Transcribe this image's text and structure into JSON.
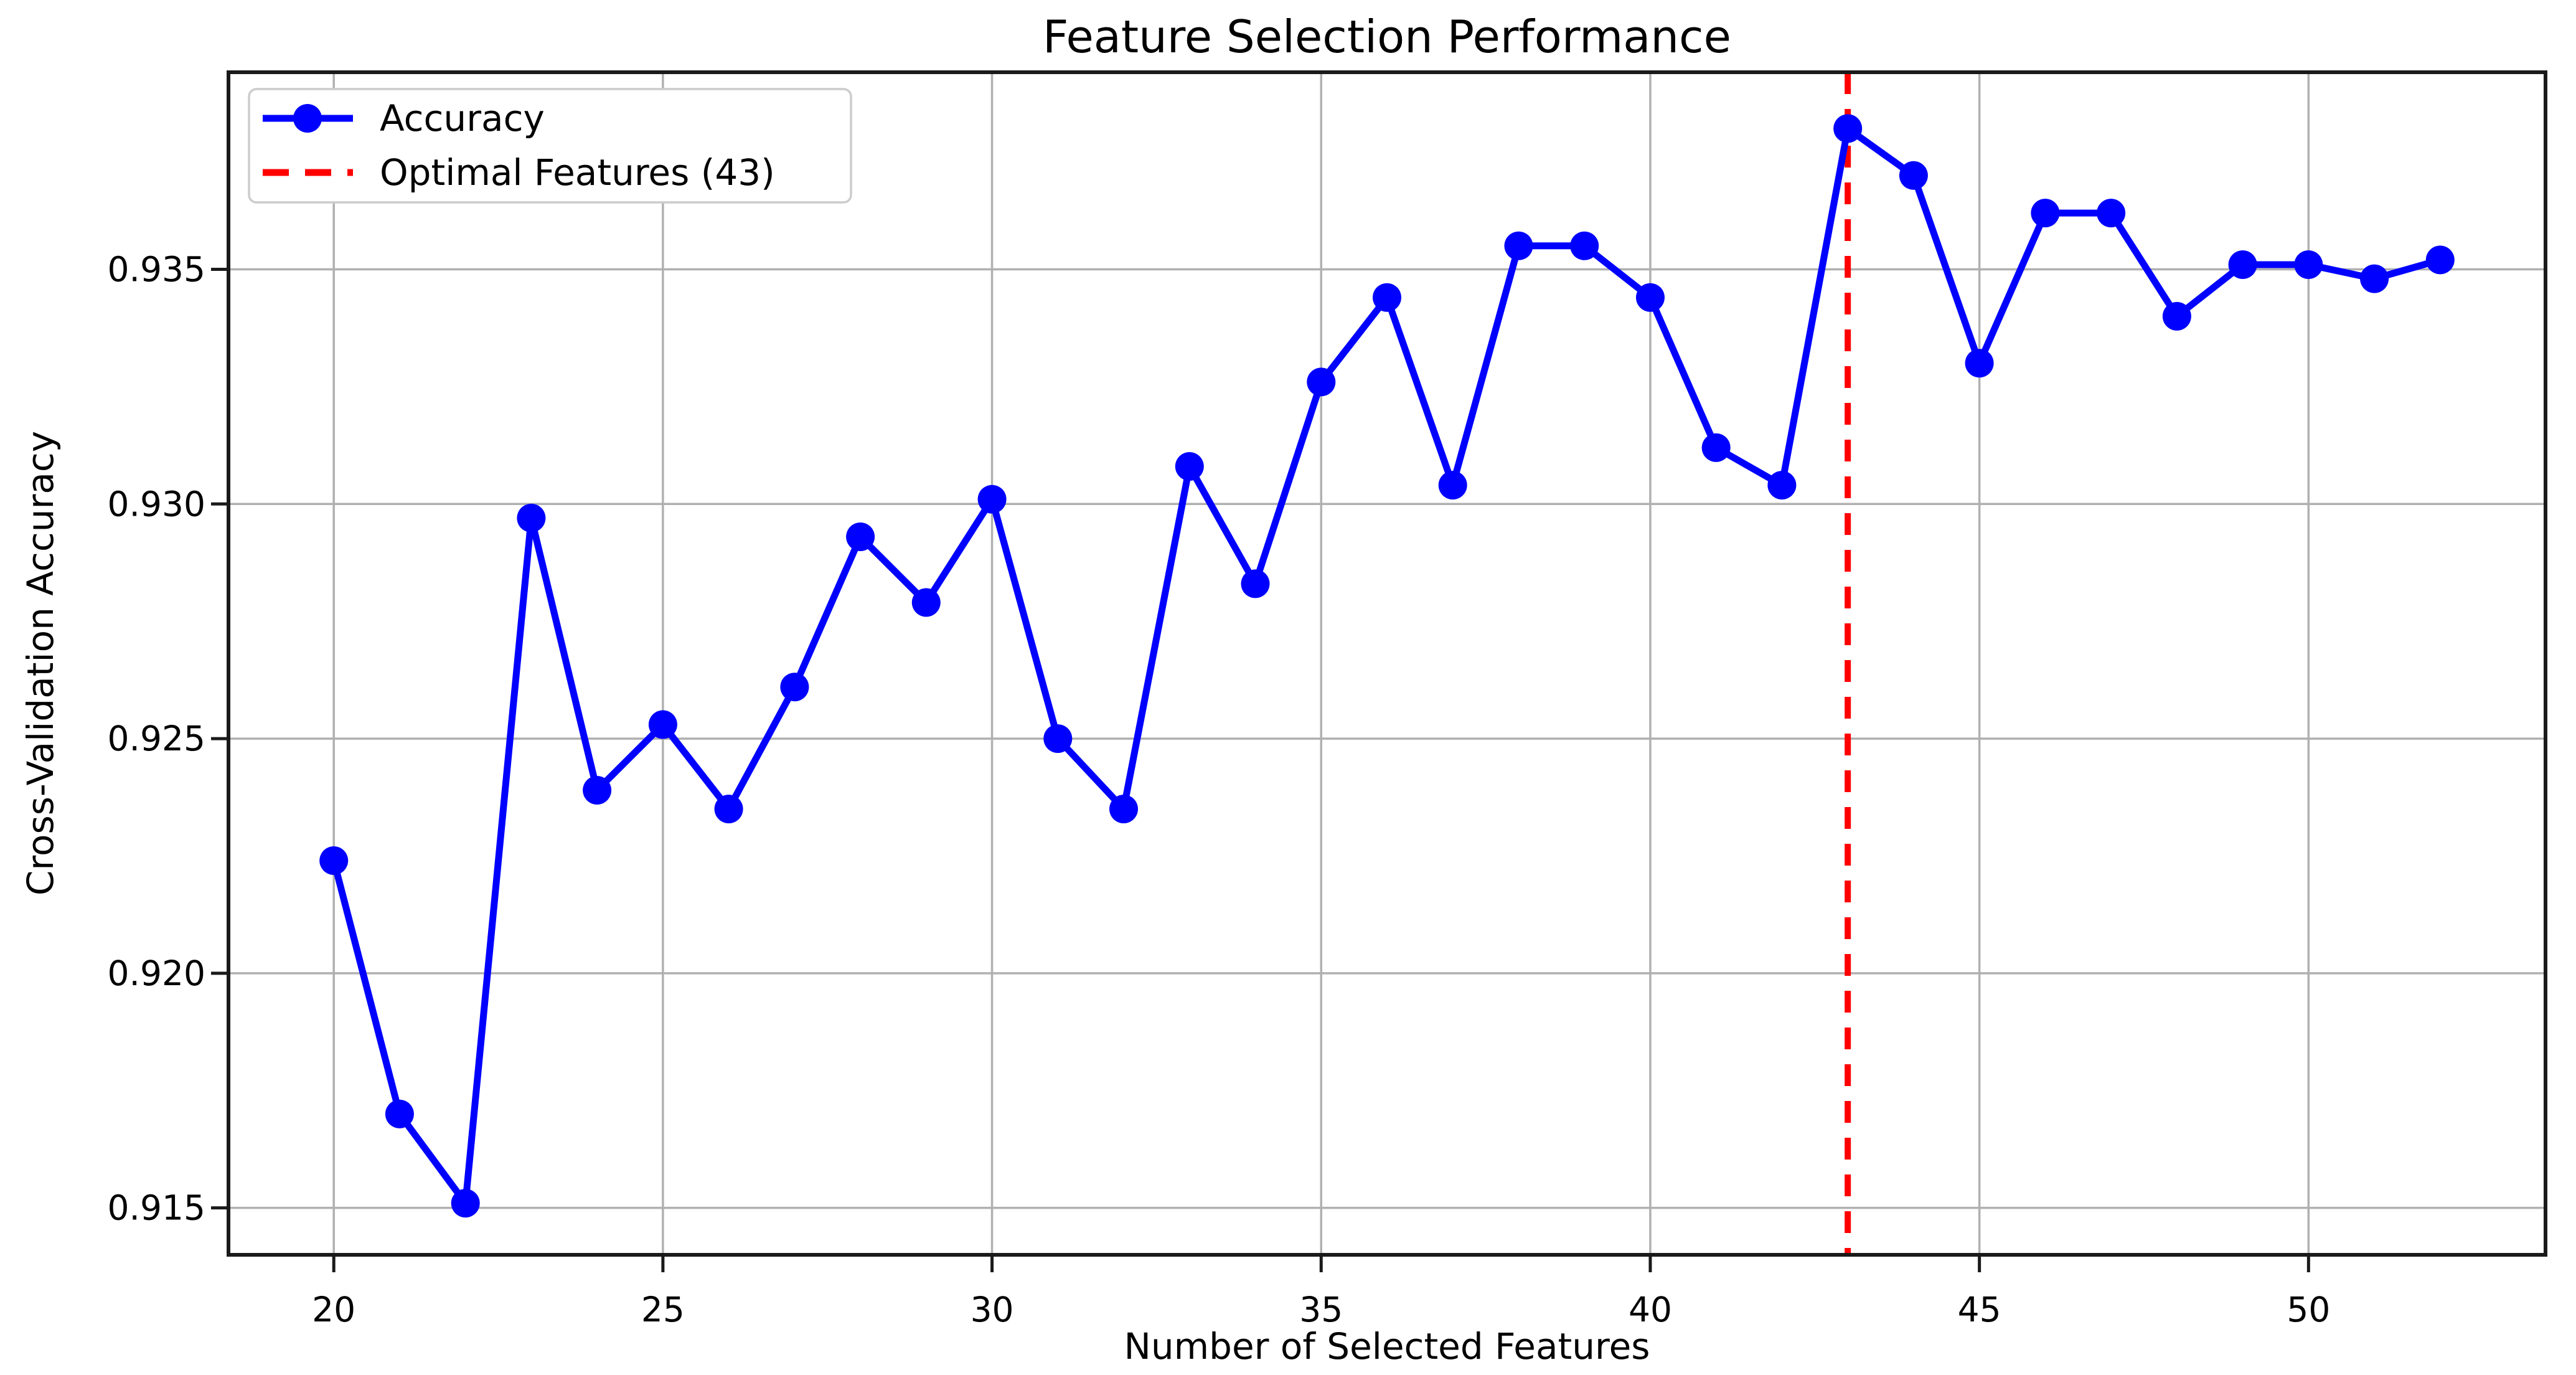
{
  "chart_data": {
    "type": "line",
    "title": "Feature Selection Performance",
    "xlabel": "Number of Selected Features",
    "ylabel": "Cross-Validation Accuracy",
    "xlim": [
      18.4,
      53.6
    ],
    "ylim": [
      0.914,
      0.9392
    ],
    "x_ticks": [
      20,
      25,
      30,
      35,
      40,
      45,
      50
    ],
    "y_ticks": [
      0.915,
      0.92,
      0.925,
      0.93,
      0.935
    ],
    "y_tick_decimals": 3,
    "grid": true,
    "grid_color": "#b0b0b0",
    "background_color": "#ffffff",
    "legend_position": "upper-left",
    "x": [
      20,
      21,
      22,
      23,
      24,
      25,
      26,
      27,
      28,
      29,
      30,
      31,
      32,
      33,
      34,
      35,
      36,
      37,
      38,
      39,
      40,
      41,
      42,
      43,
      44,
      45,
      46,
      47,
      48,
      49,
      50,
      51,
      52
    ],
    "series": [
      {
        "name": "Accuracy",
        "color": "#0000ff",
        "marker": "circle",
        "values": [
          0.9224,
          0.917,
          0.9151,
          0.9297,
          0.9239,
          0.9253,
          0.9235,
          0.9261,
          0.9293,
          0.9279,
          0.9301,
          0.925,
          0.9235,
          0.9308,
          0.9283,
          0.9326,
          0.9344,
          0.9304,
          0.9355,
          0.9355,
          0.9344,
          0.9312,
          0.9304,
          0.938,
          0.937,
          0.933,
          0.9362,
          0.9362,
          0.934,
          0.9351,
          0.9351,
          0.9348,
          0.9352
        ]
      }
    ],
    "optimal_line": {
      "label": "Optimal Features (43)",
      "x": 43,
      "color": "#ff0000",
      "style": "dashed"
    }
  },
  "legend": {
    "items": [
      {
        "label": "Accuracy"
      },
      {
        "label": "Optimal Features (43)"
      }
    ]
  }
}
